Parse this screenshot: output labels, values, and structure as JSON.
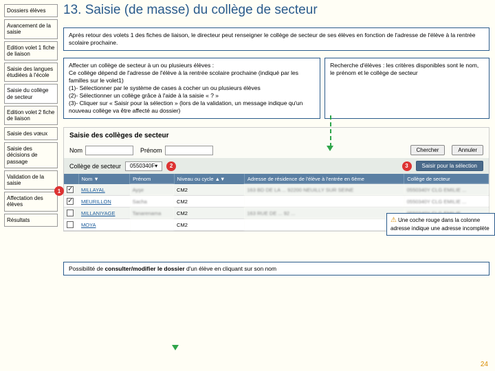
{
  "nav": [
    "Dossiers élèves",
    "Avancement de la saisie",
    "Edition volet 1 fiche de liaison",
    "Saisie des langues étudiées à l'école",
    "Saisie du collège de secteur",
    "Edition volet 2 fiche de liaison",
    "Saisie des vœux",
    "Saisie des décisions de passage",
    "Validation de la saisie",
    "Affectation des élèves",
    "Résultats"
  ],
  "title": "13. Saisie (de masse) du collège de secteur",
  "intro": "Après retour des volets 1 des fiches de liaison, le directeur peut renseigner le collège de secteur de ses élèves en fonction de l'adresse de l'élève à la rentrée scolaire prochaine.",
  "steps": "Affecter un collège de secteur à un ou plusieurs élèves :\nCe collège dépend de l'adresse de l'élève à la rentrée scolaire prochaine (indiqué par les familles sur le volet1)\n(1)- Sélectionner par le système de cases à cocher un ou plusieurs élèves\n(2)- Sélectionner un collège grâce à l'aide à la saisie « ? »\n(3)- Cliquer sur « Saisir pour la sélection » (lors de la validation, un message indique qu'un nouveau collège va être affecté au dossier)",
  "search_note": "Recherche d'élèves : les critères disponibles sont le nom, le prénom et le collège de secteur",
  "panel_title": "Saisie des collèges de secteur",
  "form": {
    "nom_label": "Nom",
    "prenom_label": "Prénom",
    "chercher": "Chercher",
    "annuler": "Annuler"
  },
  "college_row": {
    "label": "Collège de secteur",
    "value": "0550340F",
    "action": "Saisir pour la sélection"
  },
  "table": {
    "headers": [
      "",
      "Nom ▼",
      "Prénom",
      "Niveau ou cycle ▲▼",
      "Adresse de résidence de l'élève à l'entrée en 6ème",
      "Collège de secteur"
    ],
    "rows": [
      {
        "checked": true,
        "nom": "MILLAYAL",
        "prenom": "Ayşe",
        "niv": "CM2",
        "addr": "163 BD DE LA ...  92200 NEUILLY SUR SEINE",
        "coll": "0550340Y  CLG EMILIE ..."
      },
      {
        "checked": true,
        "nom": "MEURILLON",
        "prenom": "Sacha",
        "niv": "CM2",
        "addr": "",
        "coll": "0550340Y  CLG EMILIE ..."
      },
      {
        "checked": false,
        "nom": "MILLANIYAGE",
        "prenom": "Tanarenama",
        "niv": "CM2",
        "addr": "163 RUE DE ... 92 ...",
        "coll": "0550340Y  CLG EMILIE ..."
      },
      {
        "checked": false,
        "nom": "MOYA",
        "prenom": "",
        "niv": "CM2",
        "addr": "",
        "coll": ""
      }
    ]
  },
  "callout": "Une coche rouge dans la colonne adresse indique une adresse incomplète",
  "bottom": "Possibilité de consulter/modifier le dossier d'un élève en cliquant sur son nom",
  "pagenum": "24",
  "colors": {
    "accent": "#2a5b8c",
    "marker": "#d33",
    "arrow": "#2fa54a"
  }
}
